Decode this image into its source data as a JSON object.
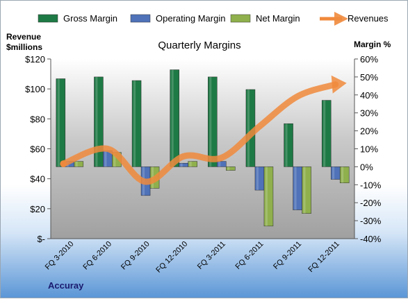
{
  "chart_data": {
    "type": "bar",
    "title": "Quarterly Margins",
    "company": "Accuray",
    "ylabel_left": [
      "Revenue",
      "$millions"
    ],
    "ylabel_right": "Margin %",
    "categories": [
      "FQ 3-2010",
      "FQ 6-2010",
      "FQ 9-2010",
      "FQ 12-2010",
      "FQ 3-2011",
      "FQ 6-2011",
      "FQ 9-2011",
      "FQ 12-2011"
    ],
    "left_axis": {
      "min": 0,
      "max": 120,
      "step": 20,
      "labels": [
        "$-",
        "$20",
        "$40",
        "$60",
        "$80",
        "$100",
        "$120"
      ]
    },
    "right_axis": {
      "min": -40,
      "max": 60,
      "step": 10,
      "labels": [
        "-40%",
        "-30%",
        "-20%",
        "-10%",
        "0%",
        "10%",
        "20%",
        "30%",
        "40%",
        "50%",
        "60%"
      ]
    },
    "series": [
      {
        "name": "Gross Margin",
        "axis": "right",
        "color": "#1e7a45",
        "values": [
          49,
          50,
          48,
          54,
          50,
          43,
          24,
          37
        ]
      },
      {
        "name": "Operating Margin",
        "axis": "right",
        "color": "#4f72b8",
        "values": [
          3,
          9,
          -16,
          2,
          3,
          -13,
          -24,
          -7
        ]
      },
      {
        "name": "Net Margin",
        "axis": "right",
        "color": "#8fb04d",
        "values": [
          3,
          8,
          -12,
          3,
          -2,
          -33,
          -26,
          -9
        ]
      },
      {
        "name": "Revenues",
        "axis": "left",
        "type": "line",
        "color": "#f08a3c",
        "values": [
          50,
          60,
          38,
          55,
          54,
          75,
          95,
          103
        ]
      }
    ],
    "legend_position": "top",
    "grid": false
  }
}
